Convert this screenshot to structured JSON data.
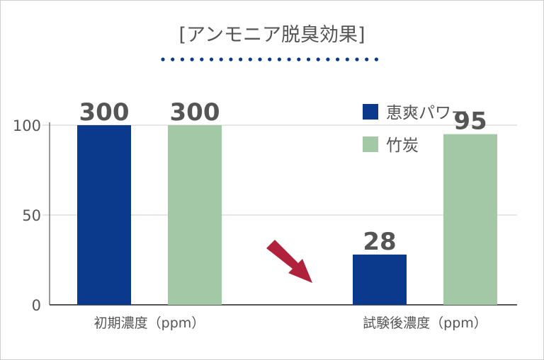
{
  "chart_data": {
    "type": "bar",
    "title": "[アンモニア脱臭効果]",
    "categories": [
      "初期濃度（ppm）",
      "試験後濃度（ppm）"
    ],
    "series": [
      {
        "name": "恵爽パワー",
        "values": [
          300,
          28
        ],
        "data_labels": [
          "300",
          "28"
        ],
        "color": "#0b3a8c"
      },
      {
        "name": "竹炭",
        "values": [
          300,
          95
        ],
        "data_labels": [
          "300",
          "95"
        ],
        "color": "#a3c8a5"
      }
    ],
    "yticks": [
      "0",
      "50",
      "100"
    ],
    "ylim": [
      0,
      100
    ],
    "ylabel": "",
    "xlabel": "",
    "grid": true,
    "legend": "top-right",
    "note": "bars exceeding the axis maximum are clipped at 100",
    "colors": {
      "title_dots": "#0b3a8c",
      "arrow": "#b0213b",
      "axis": "#777777",
      "grid": "#cccccc",
      "text": "#555555"
    }
  }
}
